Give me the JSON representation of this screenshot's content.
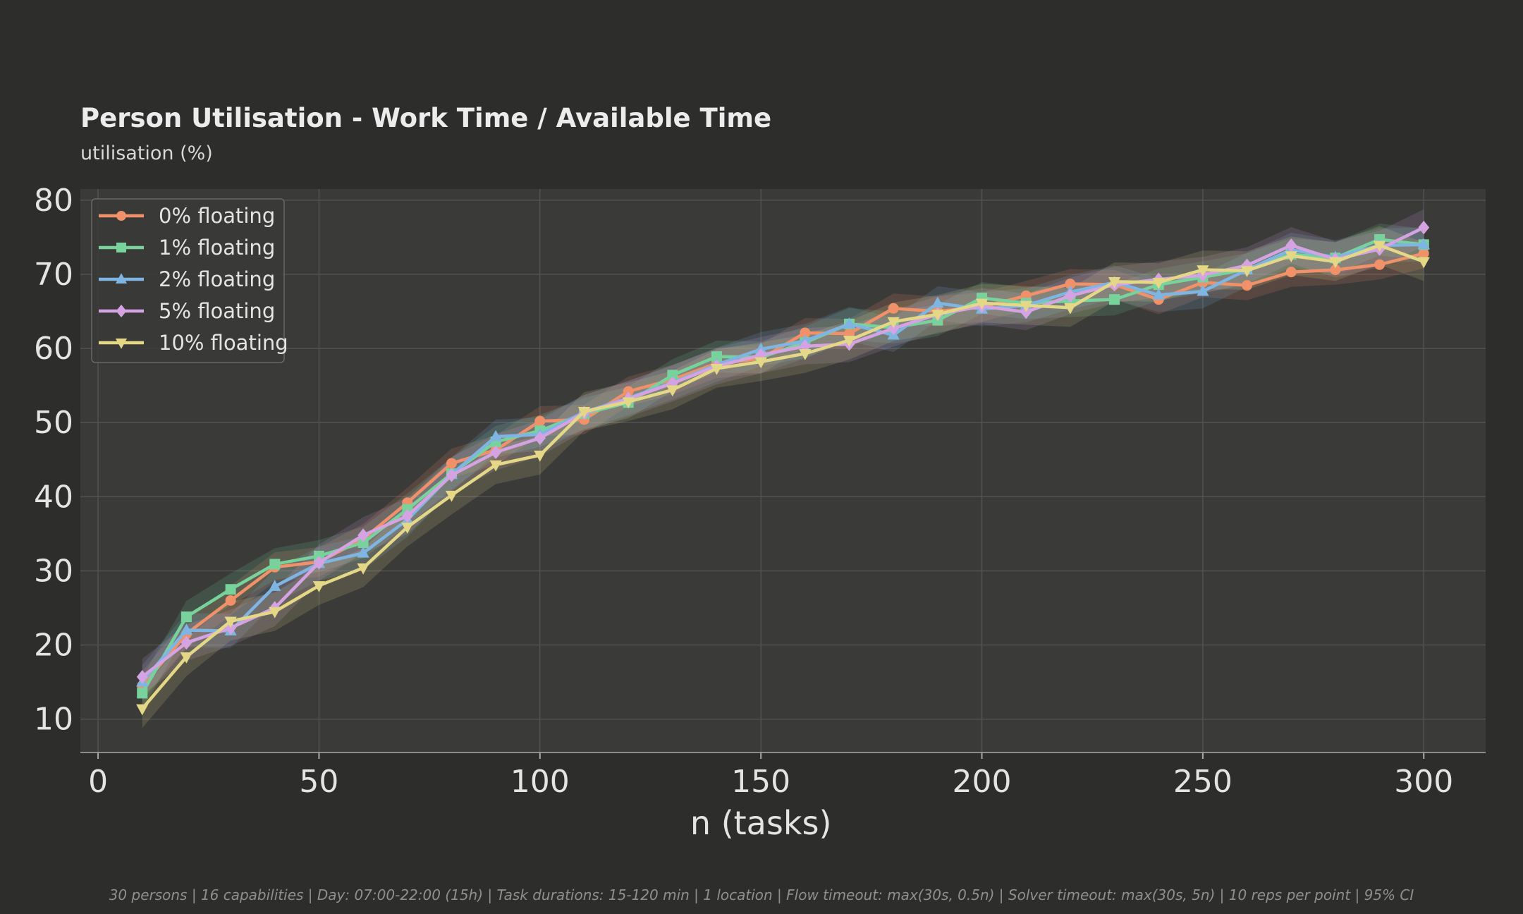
{
  "chart_data": {
    "type": "line",
    "title": "Person Utilisation  -  Work Time / Available Time",
    "subtitle": "utilisation (%)",
    "xlabel": "n (tasks)",
    "ylabel": "",
    "xlim": [
      -4,
      314
    ],
    "ylim": [
      5.5,
      81.5
    ],
    "xticks": [
      0,
      50,
      100,
      150,
      200,
      250,
      300
    ],
    "yticks": [
      10,
      20,
      30,
      40,
      50,
      60,
      70,
      80
    ],
    "grid": true,
    "legend_position": "top-left",
    "x": [
      10,
      20,
      30,
      40,
      50,
      60,
      70,
      80,
      90,
      100,
      110,
      120,
      130,
      140,
      150,
      160,
      170,
      180,
      190,
      200,
      210,
      220,
      230,
      240,
      250,
      260,
      270,
      280,
      290,
      300
    ],
    "series": [
      {
        "name": "0% floating",
        "color": "#f0916a",
        "marker": "circle",
        "values": [
          14.5,
          21.5,
          26.0,
          30.5,
          31.2,
          34.3,
          39.2,
          44.5,
          46.3,
          50.2,
          50.4,
          54.2,
          55.8,
          58.0,
          58.6,
          62.1,
          62.0,
          65.4,
          65.0,
          65.6,
          67.1,
          68.7,
          68.6,
          66.6,
          68.9,
          68.5,
          70.3,
          70.6,
          71.3,
          72.8
        ]
      },
      {
        "name": "1% floating",
        "color": "#78d29b",
        "marker": "square",
        "values": [
          13.5,
          23.8,
          27.5,
          30.9,
          32.0,
          33.8,
          38.3,
          43.1,
          47.4,
          48.9,
          51.2,
          52.7,
          56.4,
          58.9,
          58.8,
          60.8,
          63.3,
          62.8,
          63.8,
          66.8,
          66.1,
          66.4,
          66.6,
          68.6,
          69.6,
          70.7,
          72.7,
          72.2,
          74.7,
          74.0
        ]
      },
      {
        "name": "2% floating",
        "color": "#7fb5e2",
        "marker": "triangle-up",
        "values": [
          15.0,
          22.0,
          21.9,
          27.9,
          31.0,
          32.4,
          36.9,
          43.0,
          48.1,
          48.4,
          51.4,
          53.3,
          55.4,
          57.8,
          59.9,
          61.0,
          63.3,
          61.8,
          66.1,
          65.3,
          65.8,
          67.6,
          68.9,
          67.2,
          67.7,
          70.6,
          73.3,
          72.3,
          73.9,
          74.0
        ]
      },
      {
        "name": "5% floating",
        "color": "#d6a3e2",
        "marker": "diamond",
        "values": [
          15.7,
          20.3,
          22.3,
          25.0,
          31.1,
          34.8,
          37.4,
          42.9,
          46.0,
          47.9,
          51.3,
          53.2,
          55.3,
          57.6,
          59.1,
          60.3,
          60.6,
          62.7,
          64.6,
          65.7,
          64.9,
          67.1,
          68.6,
          69.3,
          69.9,
          71.2,
          73.9,
          72.0,
          73.4,
          76.3
        ]
      },
      {
        "name": "10% floating",
        "color": "#e4d886",
        "marker": "triangle-down",
        "values": [
          11.4,
          18.4,
          23.2,
          24.5,
          28.0,
          30.4,
          35.9,
          40.2,
          44.3,
          45.6,
          51.5,
          52.8,
          54.4,
          57.3,
          58.2,
          59.3,
          61.1,
          63.6,
          64.6,
          66.1,
          65.8,
          65.5,
          69.0,
          68.9,
          70.6,
          70.5,
          72.5,
          71.7,
          73.9,
          71.7
        ]
      }
    ]
  },
  "footer": "30 persons  |  16 capabilities  |  Day: 07:00-22:00 (15h)  |  Task durations: 15-120 min  |  1 location  |  Flow timeout: max(30s, 0.5n)  |  Solver timeout: max(30s, 5n)  |  10 reps per point  |  95% CI"
}
